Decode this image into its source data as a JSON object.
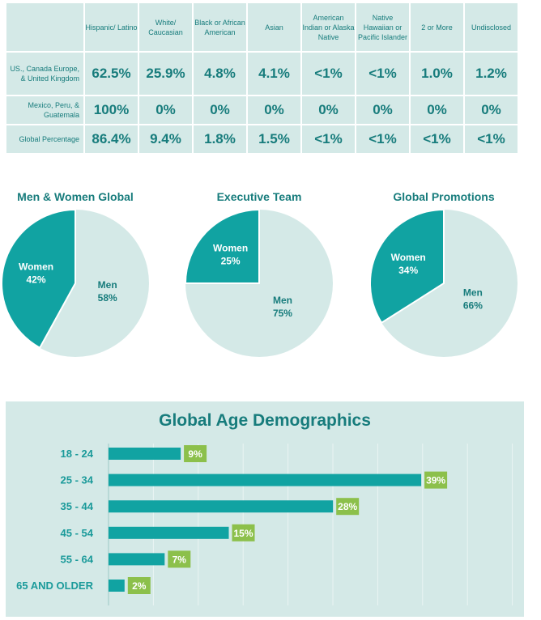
{
  "table": {
    "headers": [
      "",
      "Hispanic/ Latino",
      "White/ Caucasian",
      "Black or African American",
      "Asian",
      "American Indian or Alaska Native",
      "Native Hawaiian or Pacific Islander",
      "2 or More",
      "Undisclosed"
    ],
    "rows": [
      {
        "label": "US., Canada Europe, & United Kingdom",
        "values": [
          "62.5%",
          "25.9%",
          "4.8%",
          "4.1%",
          "<1%",
          "<1%",
          "1.0%",
          "1.2%"
        ]
      },
      {
        "label": "Mexico, Peru, & Guatemala",
        "values": [
          "100%",
          "0%",
          "0%",
          "0%",
          "0%",
          "0%",
          "0%",
          "0%"
        ]
      },
      {
        "label": "Global Percentage",
        "values": [
          "86.4%",
          "9.4%",
          "1.8%",
          "1.5%",
          "<1%",
          "<1%",
          "<1%",
          "<1%"
        ]
      }
    ]
  },
  "colors": {
    "teal": "#11a3a2",
    "light": "#d4e9e7",
    "text": "#177c7c",
    "green": "#8cc04b"
  },
  "chart_data": [
    {
      "type": "pie",
      "title": "Men & Women Global",
      "labels": [
        "Women",
        "Men"
      ],
      "values": [
        42,
        58
      ],
      "value_labels": [
        "42%",
        "58%"
      ]
    },
    {
      "type": "pie",
      "title": "Executive Team",
      "labels": [
        "Women",
        "Men"
      ],
      "values": [
        25,
        75
      ],
      "value_labels": [
        "25%",
        "75%"
      ]
    },
    {
      "type": "pie",
      "title": "Global Promotions",
      "labels": [
        "Women",
        "Men"
      ],
      "values": [
        34,
        66
      ],
      "value_labels": [
        "34%",
        "66%"
      ]
    },
    {
      "type": "bar",
      "orientation": "horizontal",
      "title": "Global Age Demographics",
      "categories": [
        "18 - 24",
        "25 - 34",
        "35 - 44",
        "45 - 54",
        "55 - 64",
        "65 AND OLDER"
      ],
      "values": [
        9,
        39,
        28,
        15,
        7,
        2
      ],
      "value_labels": [
        "9%",
        "39%",
        "28%",
        "15%",
        "7%",
        "2%"
      ],
      "grid": true
    }
  ]
}
